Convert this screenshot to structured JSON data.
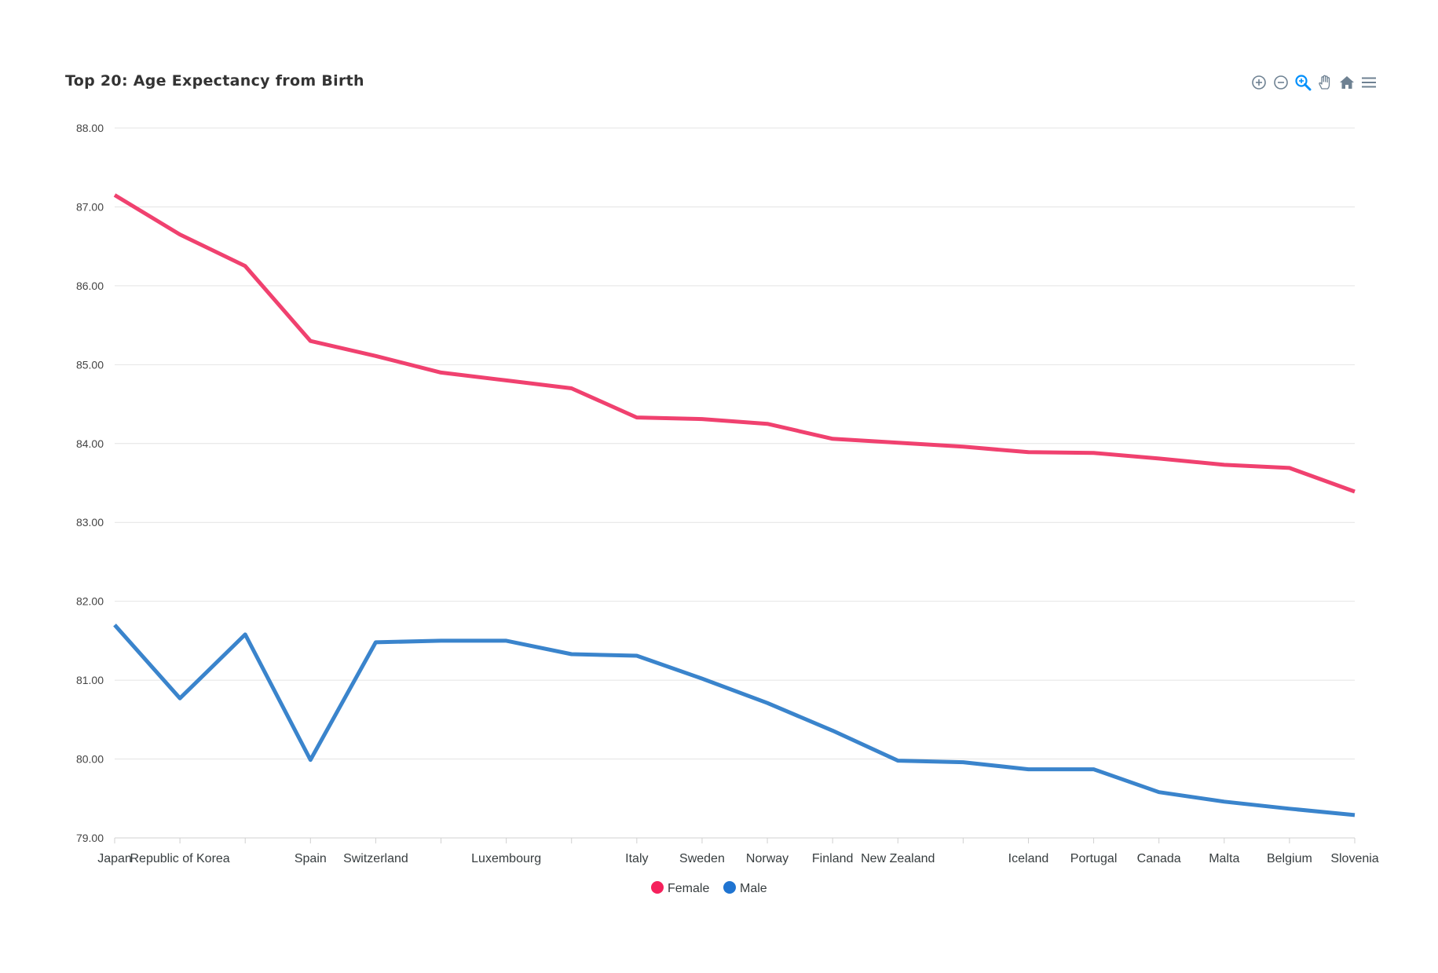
{
  "chart_data": {
    "type": "line",
    "title": "Top 20: Age Expectancy from Birth",
    "categories": [
      "Japan",
      "Republic of Korea",
      "",
      "Spain",
      "Switzerland",
      "",
      "Luxembourg",
      "",
      "Italy",
      "Sweden",
      "Norway",
      "Finland",
      "New Zealand",
      "",
      "Iceland",
      "Portugal",
      "Canada",
      "Malta",
      "Belgium",
      "Slovenia"
    ],
    "series": [
      {
        "name": "Female",
        "color": "#f0416f",
        "values": [
          87.15,
          86.65,
          86.25,
          85.3,
          85.11,
          84.9,
          84.8,
          84.7,
          84.33,
          84.31,
          84.25,
          84.06,
          84.01,
          83.96,
          83.89,
          83.88,
          83.81,
          83.73,
          83.69,
          83.39
        ]
      },
      {
        "name": "Male",
        "color": "#3a84cc",
        "values": [
          81.7,
          80.77,
          81.58,
          79.99,
          81.48,
          81.5,
          81.5,
          81.33,
          81.31,
          81.02,
          80.71,
          80.36,
          79.98,
          79.96,
          79.87,
          79.87,
          79.58,
          79.46,
          79.37,
          79.29
        ]
      }
    ],
    "legend_markers": [
      "#f5215c",
      "#1f74d1"
    ],
    "ylim": [
      79,
      88
    ],
    "yticks": [
      "79.00",
      "80.00",
      "81.00",
      "82.00",
      "83.00",
      "84.00",
      "85.00",
      "86.00",
      "87.00",
      "88.00"
    ],
    "grid": true,
    "legend_position": "bottom-center"
  },
  "toolbar": {
    "tools": [
      {
        "icon": "zoom-in-icon",
        "color": "#6e8192"
      },
      {
        "icon": "zoom-out-icon",
        "color": "#6e8192"
      },
      {
        "icon": "selection-zoom-icon",
        "color": "#008ffb"
      },
      {
        "icon": "pan-hand-icon",
        "color": "#6e8192"
      },
      {
        "icon": "home-reset-icon",
        "color": "#6e8192"
      },
      {
        "icon": "menu-icon",
        "color": "#6e8192"
      }
    ]
  }
}
